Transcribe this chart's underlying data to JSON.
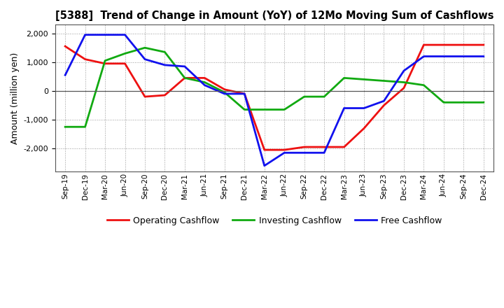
{
  "title": "[5388]  Trend of Change in Amount (YoY) of 12Mo Moving Sum of Cashflows",
  "ylabel": "Amount (million yen)",
  "x_labels": [
    "Sep-19",
    "Dec-19",
    "Mar-20",
    "Jun-20",
    "Sep-20",
    "Dec-20",
    "Mar-21",
    "Jun-21",
    "Sep-21",
    "Dec-21",
    "Mar-22",
    "Jun-22",
    "Sep-22",
    "Dec-22",
    "Mar-23",
    "Jun-23",
    "Sep-23",
    "Dec-23",
    "Mar-24",
    "Jun-24",
    "Sep-24",
    "Dec-24"
  ],
  "operating": [
    1550,
    1100,
    950,
    950,
    -200,
    -150,
    450,
    450,
    50,
    -100,
    -2050,
    -2050,
    -1950,
    -1950,
    -1950,
    -1300,
    -500,
    100,
    1600,
    1600,
    1600,
    1600
  ],
  "investing": [
    -1250,
    -1250,
    1050,
    1300,
    1500,
    1350,
    450,
    300,
    -50,
    -650,
    -650,
    -650,
    -200,
    -200,
    450,
    400,
    350,
    300,
    200,
    -400,
    -400,
    -400
  ],
  "free": [
    550,
    1950,
    1950,
    1950,
    1100,
    900,
    850,
    200,
    -100,
    -100,
    -2600,
    -2150,
    -2150,
    -2150,
    -600,
    -600,
    -350,
    700,
    1200,
    1200,
    1200,
    1200
  ],
  "ylim": [
    -2800,
    2300
  ],
  "yticks": [
    -2000,
    -1000,
    0,
    1000,
    2000
  ],
  "colors": {
    "operating": "#ee1111",
    "investing": "#11aa11",
    "free": "#1111ee"
  },
  "legend_labels": [
    "Operating Cashflow",
    "Investing Cashflow",
    "Free Cashflow"
  ],
  "background": "#ffffff",
  "grid_color": "#999999"
}
